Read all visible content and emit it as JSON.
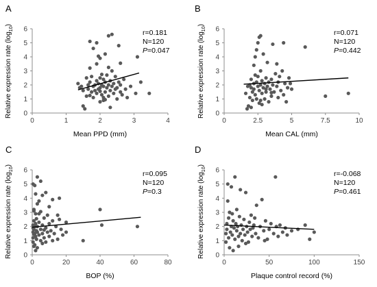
{
  "chart_data": [
    {
      "type": "scatter",
      "panel_label": "A",
      "xlabel": "Mean PPD (mm)",
      "ylabel_main": "Relative expression rate (log",
      "ylabel_sub": "10",
      "ylabel_end": ")",
      "xlim": [
        0,
        4
      ],
      "xticks": [
        0,
        1,
        2,
        3,
        4
      ],
      "ylim": [
        0,
        6
      ],
      "yticks": [
        0,
        1,
        2,
        3,
        4,
        5,
        6
      ],
      "stats": {
        "r": "r=0.181",
        "n": "N=120",
        "p_prefix": "P",
        "p_value": "=0.047"
      },
      "trendline": {
        "x": [
          1.35,
          3.15
        ],
        "y": [
          1.65,
          2.85
        ]
      },
      "points": [
        [
          1.35,
          2.1
        ],
        [
          1.4,
          1.8
        ],
        [
          1.45,
          1.9
        ],
        [
          1.5,
          1.6
        ],
        [
          1.5,
          0.5
        ],
        [
          1.55,
          0.3
        ],
        [
          1.6,
          1.2
        ],
        [
          1.6,
          2.5
        ],
        [
          1.65,
          2.0
        ],
        [
          1.65,
          1.7
        ],
        [
          1.7,
          2.2
        ],
        [
          1.7,
          3.2
        ],
        [
          1.7,
          5.1
        ],
        [
          1.75,
          1.5
        ],
        [
          1.75,
          2.6
        ],
        [
          1.8,
          1.9
        ],
        [
          1.8,
          1.1
        ],
        [
          1.8,
          4.6
        ],
        [
          1.85,
          2.0
        ],
        [
          1.85,
          1.6
        ],
        [
          1.9,
          2.3
        ],
        [
          1.9,
          1.4
        ],
        [
          1.9,
          3.5
        ],
        [
          1.9,
          5.0
        ],
        [
          1.95,
          2.1
        ],
        [
          1.95,
          1.7
        ],
        [
          2.0,
          1.8
        ],
        [
          2.0,
          2.5
        ],
        [
          2.0,
          0.8
        ],
        [
          2.0,
          3.9
        ],
        [
          2.05,
          2.0
        ],
        [
          2.05,
          1.3
        ],
        [
          2.1,
          2.4
        ],
        [
          2.1,
          1.9
        ],
        [
          2.1,
          0.9
        ],
        [
          2.15,
          2.2
        ],
        [
          2.15,
          1.5
        ],
        [
          2.15,
          4.2
        ],
        [
          2.2,
          1.8
        ],
        [
          2.2,
          2.7
        ],
        [
          2.25,
          2.0
        ],
        [
          2.25,
          1.2
        ],
        [
          2.25,
          5.5
        ],
        [
          2.3,
          1.6
        ],
        [
          2.3,
          2.3
        ],
        [
          2.3,
          0.4
        ],
        [
          2.35,
          1.9
        ],
        [
          2.35,
          3.0
        ],
        [
          2.4,
          2.1
        ],
        [
          2.4,
          1.4
        ],
        [
          2.45,
          1.7
        ],
        [
          2.45,
          2.6
        ],
        [
          2.5,
          1.8
        ],
        [
          2.5,
          1.0
        ],
        [
          2.55,
          2.2
        ],
        [
          2.55,
          4.8
        ],
        [
          2.6,
          1.5
        ],
        [
          2.6,
          2.0
        ],
        [
          2.65,
          1.3
        ],
        [
          2.7,
          2.4
        ],
        [
          2.75,
          1.7
        ],
        [
          2.8,
          1.1
        ],
        [
          2.9,
          1.9
        ],
        [
          3.05,
          1.4
        ],
        [
          3.1,
          4.0
        ],
        [
          3.2,
          2.2
        ],
        [
          3.45,
          1.4
        ],
        [
          2.0,
          1.55
        ],
        [
          2.15,
          0.95
        ],
        [
          1.7,
          1.25
        ],
        [
          2.35,
          5.6
        ],
        [
          2.05,
          2.75
        ],
        [
          1.95,
          4.05
        ],
        [
          2.25,
          3.25
        ],
        [
          2.6,
          3.55
        ],
        [
          2.1,
          1.1
        ]
      ]
    },
    {
      "type": "scatter",
      "panel_label": "B",
      "xlabel": "Mean CAL (mm)",
      "ylabel_main": "Relative expression rate (log",
      "ylabel_sub": "10",
      "ylabel_end": ")",
      "xlim": [
        0,
        10
      ],
      "xticks": [
        0,
        2.5,
        5,
        7.5,
        10
      ],
      "ylim": [
        0,
        6
      ],
      "yticks": [
        0,
        1,
        2,
        3,
        4,
        5,
        6
      ],
      "stats": {
        "r": "r=0.071",
        "n": "N=120",
        "p_prefix": "P",
        "p_value": "=0.442"
      },
      "trendline": {
        "x": [
          1.45,
          9.2
        ],
        "y": [
          2.05,
          2.5
        ]
      },
      "points": [
        [
          1.6,
          1.4
        ],
        [
          1.7,
          0.3
        ],
        [
          1.8,
          0.5
        ],
        [
          1.9,
          2.0
        ],
        [
          1.9,
          1.1
        ],
        [
          2.0,
          1.8
        ],
        [
          2.0,
          2.4
        ],
        [
          2.1,
          1.5
        ],
        [
          2.1,
          0.9
        ],
        [
          2.2,
          2.1
        ],
        [
          2.2,
          1.7
        ],
        [
          2.2,
          3.4
        ],
        [
          2.3,
          4.0
        ],
        [
          2.3,
          1.3
        ],
        [
          2.4,
          2.2
        ],
        [
          2.4,
          4.5
        ],
        [
          2.5,
          1.9
        ],
        [
          2.5,
          2.6
        ],
        [
          2.5,
          5.0
        ],
        [
          2.6,
          1.6
        ],
        [
          2.6,
          0.7
        ],
        [
          2.7,
          2.0
        ],
        [
          2.7,
          3.0
        ],
        [
          2.7,
          5.5
        ],
        [
          2.8,
          1.4
        ],
        [
          2.8,
          2.3
        ],
        [
          2.9,
          1.8
        ],
        [
          2.9,
          4.2
        ],
        [
          3.0,
          2.1
        ],
        [
          3.0,
          1.0
        ],
        [
          3.1,
          2.5
        ],
        [
          3.1,
          1.5
        ],
        [
          3.2,
          1.9
        ],
        [
          3.2,
          3.6
        ],
        [
          3.3,
          2.2
        ],
        [
          3.3,
          0.8
        ],
        [
          3.4,
          1.7
        ],
        [
          3.5,
          2.4
        ],
        [
          3.5,
          1.2
        ],
        [
          3.6,
          2.0
        ],
        [
          3.7,
          1.5
        ],
        [
          3.8,
          2.8
        ],
        [
          3.9,
          1.9
        ],
        [
          4.0,
          2.2
        ],
        [
          4.0,
          1.1
        ],
        [
          4.1,
          2.6
        ],
        [
          4.2,
          1.6
        ],
        [
          4.3,
          3.0
        ],
        [
          4.4,
          1.3
        ],
        [
          4.5,
          2.1
        ],
        [
          4.6,
          0.8
        ],
        [
          4.7,
          1.8
        ],
        [
          4.8,
          2.5
        ],
        [
          5.0,
          1.7
        ],
        [
          6.0,
          4.7
        ],
        [
          7.5,
          1.2
        ],
        [
          9.2,
          1.4
        ],
        [
          2.0,
          0.4
        ],
        [
          2.4,
          1.0
        ],
        [
          2.8,
          0.6
        ],
        [
          3.6,
          4.9
        ],
        [
          4.4,
          5.0
        ],
        [
          2.6,
          5.4
        ],
        [
          3.9,
          3.5
        ],
        [
          2.3,
          2.7
        ],
        [
          2.7,
          0.9
        ],
        [
          3.1,
          1.7
        ],
        [
          3.5,
          1.45
        ],
        [
          4.9,
          2.1
        ],
        [
          1.75,
          1.9
        ]
      ]
    },
    {
      "type": "scatter",
      "panel_label": "C",
      "xlabel": "BOP (%)",
      "ylabel_main": "Relative expression rate (log",
      "ylabel_sub": "10",
      "ylabel_end": ")",
      "xlim": [
        0,
        80
      ],
      "xticks": [
        0,
        20,
        40,
        60,
        80
      ],
      "ylim": [
        0,
        6
      ],
      "yticks": [
        0,
        1,
        2,
        3,
        4,
        5,
        6
      ],
      "stats": {
        "r": "r=0.095",
        "n": "N=120",
        "p_prefix": "P",
        "p_value": "=0.3"
      },
      "trendline": {
        "x": [
          0,
          64
        ],
        "y": [
          1.95,
          2.65
        ]
      },
      "points": [
        [
          0.5,
          0.9
        ],
        [
          0.5,
          1.6
        ],
        [
          0.5,
          2.1
        ],
        [
          0.5,
          1.2
        ],
        [
          0.5,
          5.0
        ],
        [
          1,
          1.8
        ],
        [
          1,
          2.4
        ],
        [
          1,
          0.6
        ],
        [
          1,
          3.2
        ],
        [
          1.5,
          1.5
        ],
        [
          1.5,
          2.0
        ],
        [
          1.5,
          4.9
        ],
        [
          2,
          1.3
        ],
        [
          2,
          2.2
        ],
        [
          2,
          0.3
        ],
        [
          2,
          2.9
        ],
        [
          2.5,
          1.7
        ],
        [
          2.5,
          1.1
        ],
        [
          3,
          2.0
        ],
        [
          3,
          1.6
        ],
        [
          3,
          5.5
        ],
        [
          3,
          0.5
        ],
        [
          4,
          1.4
        ],
        [
          4,
          2.3
        ],
        [
          4,
          3.8
        ],
        [
          5,
          1.8
        ],
        [
          5,
          1.0
        ],
        [
          5,
          5.2
        ],
        [
          6,
          2.1
        ],
        [
          6,
          1.5
        ],
        [
          6,
          4.2
        ],
        [
          7,
          1.2
        ],
        [
          7,
          2.6
        ],
        [
          8,
          1.9
        ],
        [
          8,
          4.4
        ],
        [
          9,
          1.6
        ],
        [
          9,
          2.8
        ],
        [
          10,
          1.3
        ],
        [
          10,
          2.2
        ],
        [
          11,
          1.7
        ],
        [
          12,
          2.4
        ],
        [
          12,
          3.9
        ],
        [
          13,
          1.5
        ],
        [
          14,
          2.0
        ],
        [
          15,
          2.8
        ],
        [
          15,
          1.1
        ],
        [
          16,
          4.0
        ],
        [
          17,
          1.8
        ],
        [
          18,
          1.4
        ],
        [
          20,
          2.3
        ],
        [
          30,
          1.0
        ],
        [
          40,
          3.2
        ],
        [
          41,
          2.1
        ],
        [
          62,
          2.0
        ],
        [
          1,
          3.1
        ],
        [
          2,
          4.3
        ],
        [
          4,
          2.9
        ],
        [
          8,
          0.9
        ],
        [
          0.5,
          1.9
        ],
        [
          1.5,
          0.7
        ],
        [
          3,
          3.6
        ],
        [
          6,
          0.8
        ],
        [
          10,
          3.4
        ],
        [
          12,
          1.0
        ],
        [
          16,
          2.5
        ],
        [
          20,
          1.6
        ],
        [
          1,
          1.45
        ],
        [
          2.5,
          2.55
        ],
        [
          5,
          3.05
        ],
        [
          7,
          1.75
        ]
      ]
    },
    {
      "type": "scatter",
      "panel_label": "D",
      "xlabel": "Plaque control record (%)",
      "ylabel_main": "Relative expression rate (log",
      "ylabel_sub": "10",
      "ylabel_end": ")",
      "xlim": [
        0,
        150
      ],
      "xticks": [
        0,
        50,
        100,
        150
      ],
      "ylim": [
        0,
        6
      ],
      "yticks": [
        0,
        1,
        2,
        3,
        4,
        5,
        6
      ],
      "stats": {
        "r": "r=-0.068",
        "n": "N=120",
        "p_prefix": "P",
        "p_value": "=0.461"
      },
      "trendline": {
        "x": [
          0,
          100
        ],
        "y": [
          2.1,
          1.8
        ]
      },
      "points": [
        [
          2,
          1.5
        ],
        [
          2,
          0.9
        ],
        [
          3,
          2.2
        ],
        [
          3,
          1.8
        ],
        [
          4,
          5.0
        ],
        [
          5,
          1.2
        ],
        [
          5,
          2.6
        ],
        [
          6,
          0.5
        ],
        [
          6,
          3.0
        ],
        [
          7,
          1.6
        ],
        [
          8,
          2.0
        ],
        [
          8,
          4.8
        ],
        [
          9,
          1.4
        ],
        [
          10,
          2.4
        ],
        [
          10,
          0.3
        ],
        [
          11,
          1.9
        ],
        [
          12,
          5.5
        ],
        [
          12,
          1.1
        ],
        [
          13,
          2.2
        ],
        [
          14,
          1.7
        ],
        [
          14,
          3.2
        ],
        [
          15,
          2.0
        ],
        [
          16,
          1.3
        ],
        [
          17,
          2.7
        ],
        [
          18,
          1.5
        ],
        [
          18,
          4.6
        ],
        [
          19,
          2.1
        ],
        [
          20,
          1.0
        ],
        [
          21,
          1.8
        ],
        [
          22,
          2.5
        ],
        [
          23,
          1.4
        ],
        [
          24,
          4.4
        ],
        [
          25,
          2.0
        ],
        [
          26,
          1.6
        ],
        [
          27,
          0.9
        ],
        [
          28,
          2.3
        ],
        [
          29,
          1.8
        ],
        [
          30,
          2.8
        ],
        [
          31,
          1.3
        ],
        [
          32,
          1.9
        ],
        [
          33,
          2.1
        ],
        [
          35,
          1.5
        ],
        [
          36,
          3.5
        ],
        [
          38,
          1.2
        ],
        [
          40,
          2.0
        ],
        [
          42,
          3.9
        ],
        [
          44,
          1.7
        ],
        [
          46,
          2.4
        ],
        [
          48,
          1.1
        ],
        [
          50,
          1.8
        ],
        [
          52,
          2.2
        ],
        [
          55,
          1.5
        ],
        [
          57,
          5.5
        ],
        [
          58,
          2.0
        ],
        [
          60,
          1.3
        ],
        [
          62,
          2.1
        ],
        [
          65,
          1.6
        ],
        [
          68,
          1.9
        ],
        [
          70,
          1.4
        ],
        [
          75,
          1.7
        ],
        [
          82,
          1.8
        ],
        [
          90,
          2.1
        ],
        [
          95,
          1.1
        ],
        [
          100,
          1.6
        ],
        [
          4,
          3.8
        ],
        [
          9,
          2.9
        ],
        [
          16,
          0.6
        ],
        [
          24,
          0.8
        ],
        [
          34,
          2.6
        ],
        [
          45,
          1.0
        ]
      ]
    }
  ]
}
